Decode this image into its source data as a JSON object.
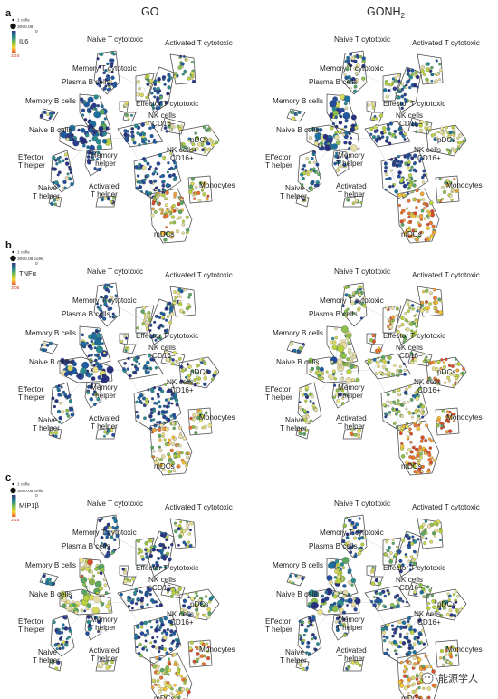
{
  "columns": [
    "GO",
    "GONH<sub>2</sub>"
  ],
  "column_titles": {
    "left": "GO",
    "right_base": "GONH",
    "right_sub": "2"
  },
  "panels": [
    {
      "letter": "a",
      "marker": "IL6",
      "legend": {
        "count_top": "1 cells",
        "count_bottom": "3080.08",
        "min": "0",
        "max": "3.24"
      }
    },
    {
      "letter": "b",
      "marker": "TNFα",
      "legend": {
        "count_top": "1 cells",
        "count_bottom": "3080.08 cells",
        "min": "0",
        "max": "3.05"
      }
    },
    {
      "letter": "c",
      "marker": "MIP1β",
      "legend": {
        "count_top": "1 cells",
        "count_bottom": "3080.08 cells",
        "min": "0",
        "max": "3.15"
      }
    }
  ],
  "clusters": {
    "go": {
      "naive_t_cytotoxic": "Naive T cytotoxic",
      "activated_t_cytotoxic": "Activated T cytotoxic",
      "memory_t_cytotoxic": "Memory T cytotoxic",
      "plasma_b_cells": "Plasma B cells",
      "memory_b_cells": "Memory B cells",
      "effector_t_cytotoxic": "Effector T cytotoxic",
      "nk_cells_cd16_minus_1": "NK cells",
      "nk_cells_cd16_minus_2": "CD16−",
      "naive_b_cells": "Naive B cells",
      "pdcs": "pDCs",
      "effector_t_helper_1": "Effector",
      "effector_t_helper_2": "T helper",
      "memory_t_helper_1": "Memory",
      "memory_t_helper_2": "T helper",
      "nk_cells_cd16_plus_1": "NK cells",
      "nk_cells_cd16_plus_2": "CD16+",
      "naive_t_helper_1": "Naive",
      "naive_t_helper_2": "T helper",
      "activated_t_helper_1": "Activated",
      "activated_t_helper_2": "T helper",
      "monocytes": "Monocytes",
      "mdcs": "mDCs"
    }
  },
  "watermark": "能源学人",
  "colormap": {
    "low": "#253494",
    "mid1": "#2c7fb8",
    "mid2": "#41b6c4",
    "mid3": "#7fcdbb",
    "mid4": "#edf8b1",
    "mid5": "#fec44f",
    "high": "#e34a33"
  }
}
